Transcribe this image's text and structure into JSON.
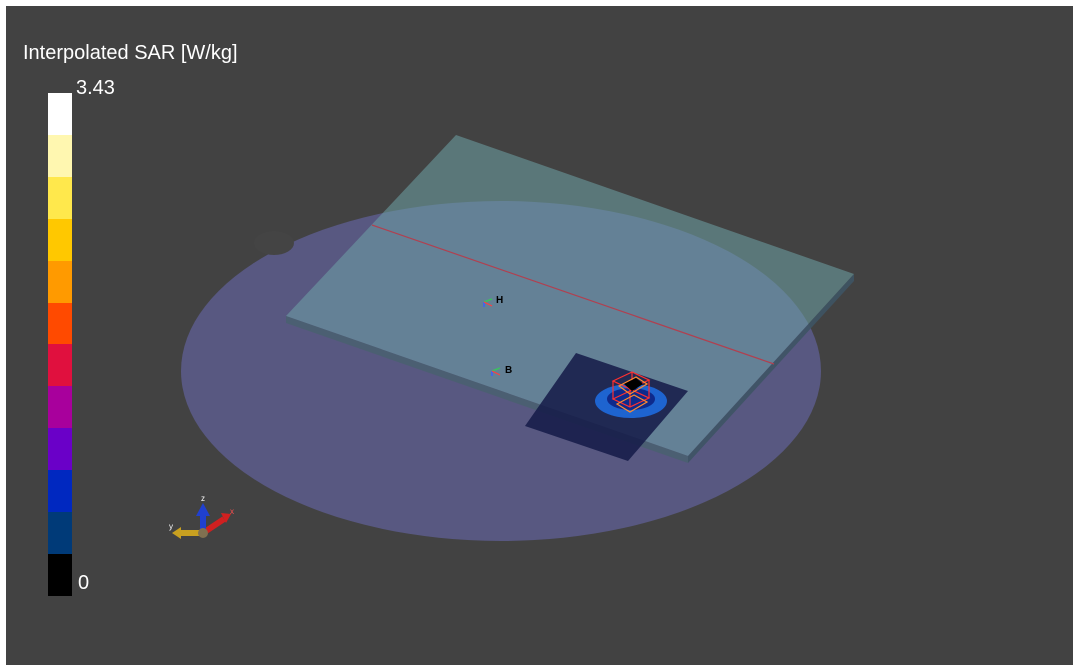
{
  "legend": {
    "title": "Interpolated SAR [W/kg]",
    "max_label": "3.43",
    "min_label": "0",
    "colors": [
      "#ffffff",
      "#fff7b0",
      "#ffe84c",
      "#ffc800",
      "#ff9a00",
      "#ff4a00",
      "#e0103e",
      "#a8009c",
      "#6a00c8",
      "#0028c0",
      "#003a78",
      "#000000"
    ]
  },
  "scene": {
    "markers": [
      {
        "label": "H"
      },
      {
        "label": "B"
      }
    ],
    "axes": {
      "x_label": "x",
      "y_label": "y",
      "z_label": "z"
    }
  }
}
